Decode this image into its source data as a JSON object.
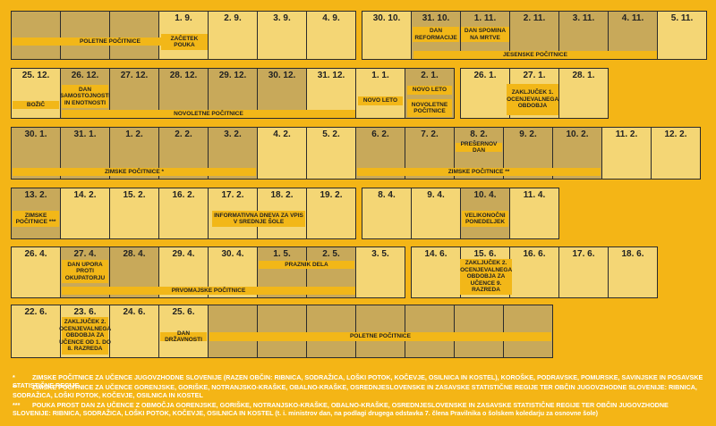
{
  "colors": {
    "background": "#f4b516",
    "cell_light": "#f4d675",
    "cell_dark": "#c8a95a",
    "label_bg": "#f2b718",
    "border": "#2b2b2b"
  },
  "rows": [
    {
      "cells": [
        {
          "date": "",
          "shade": "dark"
        },
        {
          "date": "",
          "shade": "dark"
        },
        {
          "date": "",
          "shade": "dark"
        },
        {
          "date": "1. 9.",
          "shade": "light"
        },
        {
          "date": "2. 9.",
          "shade": "light"
        },
        {
          "date": "3. 9.",
          "shade": "light"
        },
        {
          "date": "4. 9.",
          "shade": "light"
        },
        {
          "date": "30. 10.",
          "shade": "light"
        },
        {
          "date": "31. 10.",
          "shade": "dark"
        },
        {
          "date": "1. 11.",
          "shade": "dark"
        },
        {
          "date": "2. 11.",
          "shade": "dark"
        },
        {
          "date": "3. 11.",
          "shade": "dark"
        },
        {
          "date": "4. 11.",
          "shade": "dark"
        },
        {
          "date": "5. 11.",
          "shade": "light"
        }
      ],
      "labels": [
        {
          "text": "POLETNE POČITNICE"
        },
        {
          "text": "ZAČETEK POUKA"
        },
        {
          "text": "DAN REFORMACIJE"
        },
        {
          "text": "DAN SPOMINA NA MRTVE"
        },
        {
          "text": "JESENSKE POČITNICE"
        }
      ]
    },
    {
      "cells": [
        {
          "date": "25. 12.",
          "shade": "light"
        },
        {
          "date": "26. 12.",
          "shade": "dark"
        },
        {
          "date": "27. 12.",
          "shade": "dark"
        },
        {
          "date": "28. 12.",
          "shade": "dark"
        },
        {
          "date": "29. 12.",
          "shade": "dark"
        },
        {
          "date": "30. 12.",
          "shade": "dark"
        },
        {
          "date": "31. 12.",
          "shade": "light"
        },
        {
          "date": "1. 1.",
          "shade": "light"
        },
        {
          "date": "2. 1.",
          "shade": "dark"
        },
        {
          "date": "26. 1.",
          "shade": "light"
        },
        {
          "date": "27. 1.",
          "shade": "light"
        },
        {
          "date": "28. 1.",
          "shade": "light"
        }
      ],
      "labels": [
        {
          "text": "BOŽIČ"
        },
        {
          "text": "DAN SAMOSTOJNOSTI IN ENOTNOSTI"
        },
        {
          "text": "NOVOLETNE POČITNICE"
        },
        {
          "text": "NOVO LETO"
        },
        {
          "text": "NOVO LETO"
        },
        {
          "text": "NOVOLETNE POČITNICE"
        },
        {
          "text": "ZAKLJUČEK 1. OCENJEVALNEGA OBDOBJA"
        }
      ]
    },
    {
      "cells": [
        {
          "date": "30. 1.",
          "shade": "dark"
        },
        {
          "date": "31. 1.",
          "shade": "dark"
        },
        {
          "date": "1. 2.",
          "shade": "dark"
        },
        {
          "date": "2. 2.",
          "shade": "dark"
        },
        {
          "date": "3. 2.",
          "shade": "dark"
        },
        {
          "date": "4. 2.",
          "shade": "light"
        },
        {
          "date": "5. 2.",
          "shade": "light"
        },
        {
          "date": "6. 2.",
          "shade": "dark"
        },
        {
          "date": "7. 2.",
          "shade": "dark"
        },
        {
          "date": "8. 2.",
          "shade": "dark"
        },
        {
          "date": "9. 2.",
          "shade": "dark"
        },
        {
          "date": "10. 2.",
          "shade": "dark"
        },
        {
          "date": "11. 2.",
          "shade": "light"
        },
        {
          "date": "12. 2.",
          "shade": "light"
        }
      ],
      "labels": [
        {
          "text": "ZIMSKE POČITNICE *"
        },
        {
          "text": "PREŠERNOV DAN"
        },
        {
          "text": "ZIMSKE POČITNICE **"
        }
      ]
    },
    {
      "cells": [
        {
          "date": "13. 2.",
          "shade": "dark"
        },
        {
          "date": "14. 2.",
          "shade": "light"
        },
        {
          "date": "15. 2.",
          "shade": "light"
        },
        {
          "date": "16. 2.",
          "shade": "light"
        },
        {
          "date": "17. 2.",
          "shade": "light"
        },
        {
          "date": "18. 2.",
          "shade": "light"
        },
        {
          "date": "19. 2.",
          "shade": "light"
        },
        {
          "date": "8. 4.",
          "shade": "light"
        },
        {
          "date": "9. 4.",
          "shade": "light"
        },
        {
          "date": "10. 4.",
          "shade": "dark"
        },
        {
          "date": "11. 4.",
          "shade": "light"
        }
      ],
      "labels": [
        {
          "text": "ZIMSKE POČITNICE ***"
        },
        {
          "text": "INFORMATIVNA DNEVA ZA VPIS V SREDNJE ŠOLE"
        },
        {
          "text": "VELIKONOČNI PONEDELJEK"
        }
      ]
    },
    {
      "cells": [
        {
          "date": "26. 4.",
          "shade": "light"
        },
        {
          "date": "27. 4.",
          "shade": "dark"
        },
        {
          "date": "28. 4.",
          "shade": "dark"
        },
        {
          "date": "29. 4.",
          "shade": "light"
        },
        {
          "date": "30. 4.",
          "shade": "light"
        },
        {
          "date": "1. 5.",
          "shade": "dark"
        },
        {
          "date": "2. 5.",
          "shade": "dark"
        },
        {
          "date": "3. 5.",
          "shade": "light"
        },
        {
          "date": "14. 6.",
          "shade": "light"
        },
        {
          "date": "15. 6.",
          "shade": "light"
        },
        {
          "date": "16. 6.",
          "shade": "light"
        },
        {
          "date": "17. 6.",
          "shade": "light"
        },
        {
          "date": "18. 6.",
          "shade": "light"
        }
      ],
      "labels": [
        {
          "text": "DAN UPORA PROTI OKUPATORJU"
        },
        {
          "text": "PRAZNIK DELA"
        },
        {
          "text": "PRVOMAJSKE POČITNICE"
        },
        {
          "text": "ZAKLJUČEK 2. OCENJEVALNEGA OBDOBJA ZA UČENCE 9. RAZREDA"
        }
      ]
    },
    {
      "cells": [
        {
          "date": "22. 6.",
          "shade": "light"
        },
        {
          "date": "23. 6.",
          "shade": "light"
        },
        {
          "date": "24. 6.",
          "shade": "light"
        },
        {
          "date": "25. 6.",
          "shade": "light"
        },
        {
          "date": "",
          "shade": "dark"
        },
        {
          "date": "",
          "shade": "dark"
        },
        {
          "date": "",
          "shade": "dark"
        },
        {
          "date": "",
          "shade": "dark"
        },
        {
          "date": "",
          "shade": "dark"
        },
        {
          "date": "",
          "shade": "dark"
        },
        {
          "date": "",
          "shade": "dark"
        }
      ],
      "labels": [
        {
          "text": "ZAKLJUČEK 2. OCENJEVALNEGA OBDOBJA ZA UČENCE OD 1. DO 8. RAZREDA"
        },
        {
          "text": "DAN DRŽAVNOSTI"
        },
        {
          "text": "POLETNE POČITNICE"
        }
      ]
    }
  ],
  "notes": [
    {
      "mark": "*",
      "text": "ZIMSKE POČITNICE ZA UČENCE JUGOVZHODNE SLOVENIJE (RAZEN OBČIN: RIBNICA, SODRAŽICA, LOŠKI POTOK, KOČEVJE, OSILNICA IN KOSTEL), KOROŠKE, PODRAVSKE, POMURSKE, SAVINJSKE IN POSAVSKE STATISTIČNE REGIJE"
    },
    {
      "mark": "**",
      "text": "ZIMSKE POČITNICE ZA UČENCE GORENJSKE, GORIŠKE, NOTRANJSKO-KRAŠKE, OBALNO-KRAŠKE, OSREDNJESLOVENSKE IN ZASAVSKE STATISTIČNE REGIJE TER OBČIN JUGOVZHODNE SLOVENIJE: RIBNICA, SODRAŽICA, LOŠKI POTOK, KOČEVJE, OSILNICA IN KOSTEL"
    },
    {
      "mark": "***",
      "text": "POUKA PROST DAN ZA UČENCE Z OBMOČJA GORENJSKE, GORIŠKE, NOTRANJSKO-KRAŠKE, OBALNO-KRAŠKE, OSREDNJESLOVENSKE IN ZASAVSKE STATISTIČNE REGIJE TER OBČIN JUGOVZHODNE SLOVENIJE: RIBNICA, SODRAŽICA, LOŠKI POTOK, KOČEVJE, OSILNICA IN KOSTEL (t. i. ministrov dan, na podlagi drugega odstavka 7. člena Pravilnika o šolskem koledarju za osnovne šole)"
    }
  ]
}
